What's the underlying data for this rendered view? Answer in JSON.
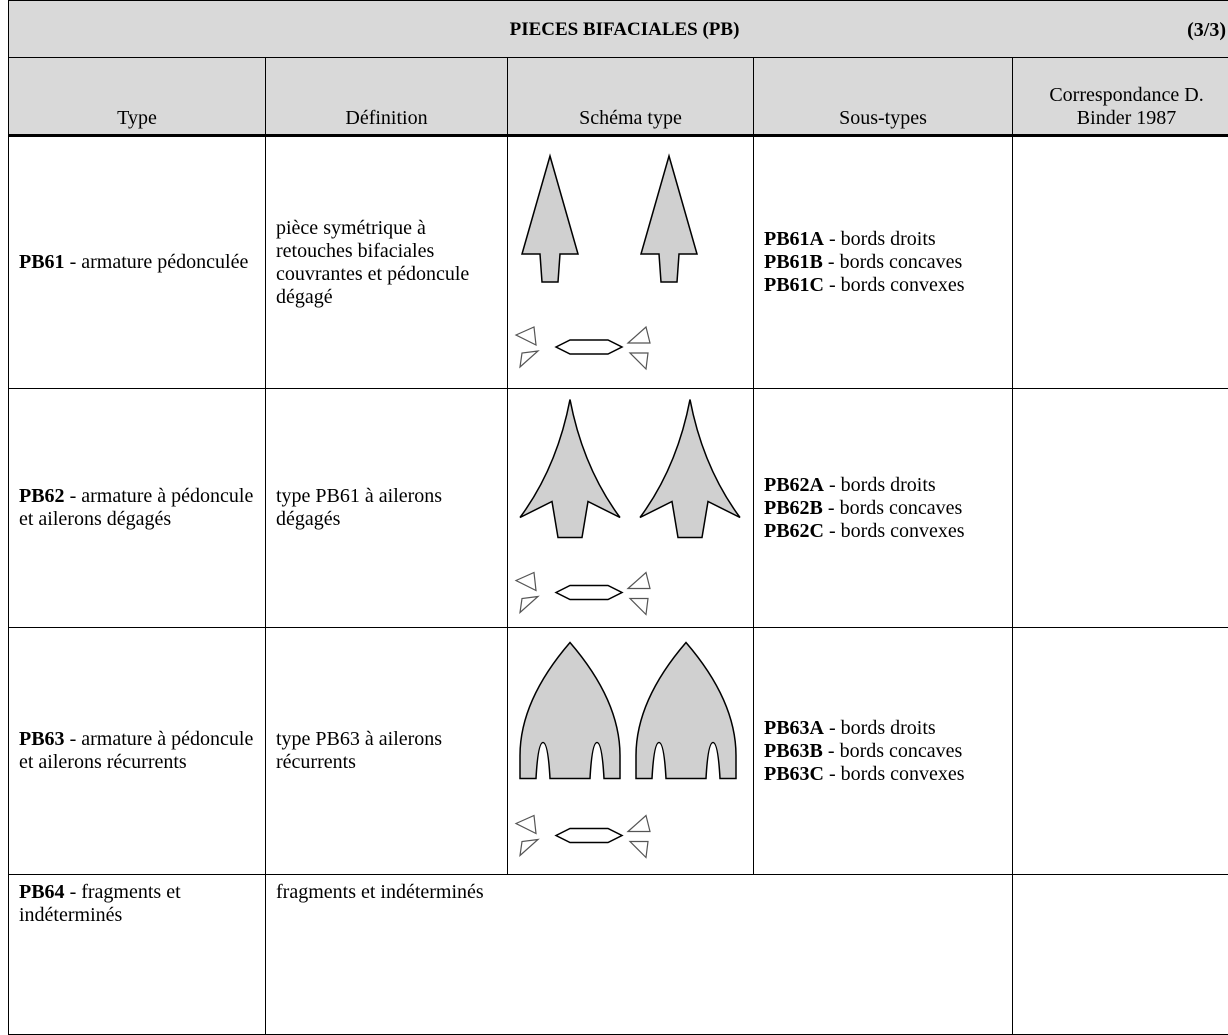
{
  "header": {
    "title": "PIECES BIFACIALES (PB)",
    "page": "(3/3)",
    "columns": [
      "Type",
      "Définition",
      "Schéma type",
      "Sous-types",
      "Correspondance D. Binder 1987"
    ]
  },
  "rows": [
    {
      "code": "PB61",
      "label": "- armature pédonculée",
      "definition": "pièce symétrique à retouches bifaciales couvrantes et pédoncule dégagé",
      "subtypes": [
        {
          "code": "PB61A",
          "label": "- bords droits"
        },
        {
          "code": "PB61B",
          "label": "- bords concaves"
        },
        {
          "code": "PB61C",
          "label": "- bords convexes"
        }
      ]
    },
    {
      "code": "PB62",
      "label": "- armature à pédoncule et ailerons dégagés",
      "definition": "type PB61 à ailerons dégagés",
      "subtypes": [
        {
          "code": "PB62A",
          "label": "- bords droits"
        },
        {
          "code": "PB62B",
          "label": "- bords concaves"
        },
        {
          "code": "PB62C",
          "label": "- bords convexes"
        }
      ]
    },
    {
      "code": "PB63",
      "label": "- armature à pédoncule et ailerons récurrents",
      "definition": "type PB63 à ailerons récurrents",
      "subtypes": [
        {
          "code": "PB63A",
          "label": "- bords droits"
        },
        {
          "code": "PB63B",
          "label": "- bords concaves"
        },
        {
          "code": "PB63C",
          "label": "- bords convexes"
        }
      ]
    },
    {
      "code": "PB64",
      "label": "- fragments et indéterminés",
      "definition": "fragments et indéterminés"
    }
  ]
}
